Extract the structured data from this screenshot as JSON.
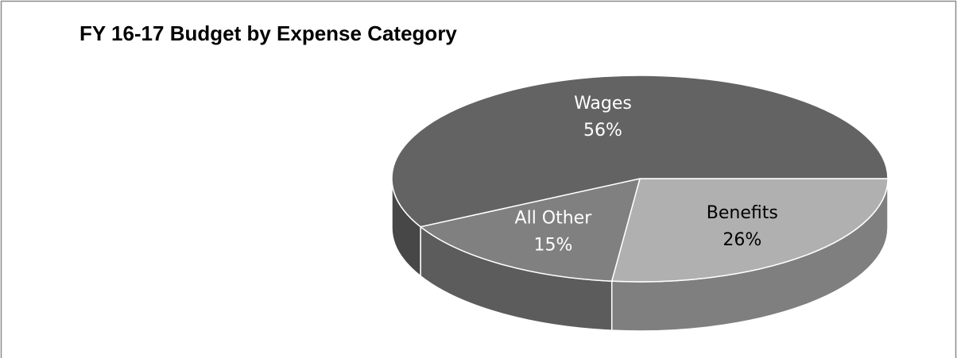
{
  "chart_data": {
    "type": "pie3d",
    "title": "FY 16-17 Budget by Expense Category",
    "categories": [
      "Benefits",
      "All Other",
      "Wages"
    ],
    "values": [
      26,
      15,
      56
    ],
    "value_labels": [
      "26%",
      "15%",
      "56%"
    ],
    "colors": [
      "#b0b0b0",
      "#808080",
      "#636363"
    ]
  }
}
